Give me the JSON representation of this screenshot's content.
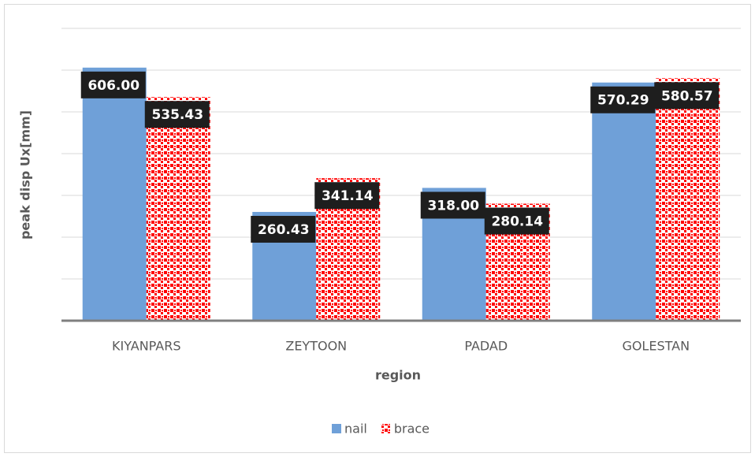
{
  "chart_data": {
    "type": "bar",
    "y_label": "peak disp Ux[mm]",
    "x_label": "region",
    "categories": [
      "KIYANPARS",
      "ZEYTOON",
      "PADAD",
      "GOLESTAN"
    ],
    "series": [
      {
        "name": "nail",
        "color": "#6fa0d8",
        "values": [
          606,
          260.43,
          318,
          570.29
        ],
        "value_labels": [
          "606.00",
          "260.43",
          "318.00",
          "570.29"
        ]
      },
      {
        "name": "brace",
        "color": "#ff0000",
        "pattern": "checker",
        "values": [
          535.43,
          341.14,
          280.14,
          580.57
        ],
        "value_labels": [
          "535.43",
          "341.14",
          "280.14",
          "580.57"
        ]
      }
    ],
    "ylim": [
      0,
      700
    ],
    "yticks": [
      0,
      100,
      200,
      300,
      400,
      500,
      600,
      700
    ],
    "grid": true,
    "legend": "bottom"
  }
}
